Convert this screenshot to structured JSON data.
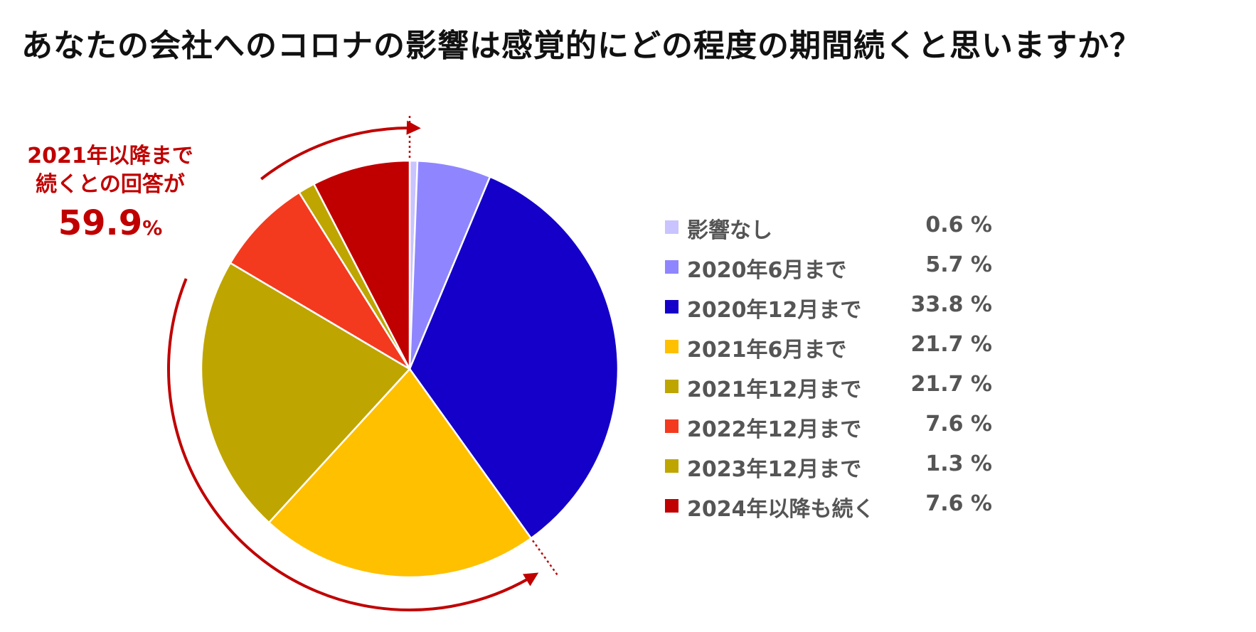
{
  "title": "あなたの会社へのコロナの影響は感覚的にどの程度の期間続くと思いますか？",
  "callout": {
    "line1": "2021年以降まで",
    "line2": "続くとの回答が",
    "value": "59.9",
    "unit": "%"
  },
  "chart_data": {
    "type": "pie",
    "title": "あなたの会社へのコロナの影響は感覚的にどの程度の期間続くと思いますか？",
    "categories": [
      "影響なし",
      "2020年6月まで",
      "2020年12月まで",
      "2021年6月まで",
      "2021年12月まで",
      "2022年12月まで",
      "2023年12月まで",
      "2024年以降も続く"
    ],
    "values": [
      0.6,
      5.7,
      33.8,
      21.7,
      21.7,
      7.6,
      1.3,
      7.6
    ],
    "value_labels": [
      "0.6 %",
      "5.7 %",
      "33.8 %",
      "21.7 %",
      "21.7 %",
      "7.6 %",
      "1.3 %",
      "7.6 %"
    ],
    "colors": [
      "#c9c3ff",
      "#8f86ff",
      "#1400c8",
      "#ffc000",
      "#bfa500",
      "#f33a1e",
      "#bfa500",
      "#c00000"
    ],
    "start_angle": "12 o'clock",
    "direction": "clockwise",
    "legend_position": "right",
    "highlight": {
      "from_category": "2021年6月まで",
      "to_category": "2024年以降も続く",
      "total": 59.9,
      "color": "#c00000"
    }
  }
}
